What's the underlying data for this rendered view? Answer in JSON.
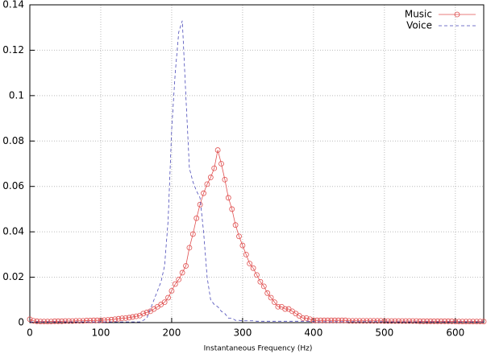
{
  "chart_data": {
    "type": "line",
    "x_label": "Instantaneous Frequency (Hz)",
    "x": [
      0,
      5,
      10,
      15,
      20,
      25,
      30,
      35,
      40,
      45,
      50,
      55,
      60,
      65,
      70,
      75,
      80,
      85,
      90,
      95,
      100,
      105,
      110,
      115,
      120,
      125,
      130,
      135,
      140,
      145,
      150,
      155,
      160,
      165,
      170,
      175,
      180,
      185,
      190,
      195,
      200,
      205,
      210,
      215,
      220,
      225,
      230,
      235,
      240,
      245,
      250,
      255,
      260,
      265,
      270,
      275,
      280,
      285,
      290,
      295,
      300,
      305,
      310,
      315,
      320,
      325,
      330,
      335,
      340,
      345,
      350,
      355,
      360,
      365,
      370,
      375,
      380,
      385,
      390,
      395,
      400,
      405,
      410,
      415,
      420,
      425,
      430,
      435,
      440,
      445,
      450,
      455,
      460,
      465,
      470,
      475,
      480,
      485,
      490,
      495,
      500,
      505,
      510,
      515,
      520,
      525,
      530,
      535,
      540,
      545,
      550,
      555,
      560,
      565,
      570,
      575,
      580,
      585,
      590,
      595,
      600,
      605,
      610,
      615,
      620,
      625,
      630,
      635,
      640
    ],
    "series": [
      {
        "name": "Music",
        "color": "#e05050",
        "marker": "circle",
        "dash": false,
        "values": [
          0.0015,
          0.0008,
          0.0006,
          0.0005,
          0.0005,
          0.0005,
          0.0005,
          0.0006,
          0.0006,
          0.0006,
          0.0007,
          0.0007,
          0.0007,
          0.0008,
          0.0008,
          0.0008,
          0.0009,
          0.0009,
          0.001,
          0.001,
          0.001,
          0.0011,
          0.0012,
          0.0013,
          0.0015,
          0.0017,
          0.0019,
          0.002,
          0.0022,
          0.0025,
          0.0028,
          0.0031,
          0.004,
          0.0045,
          0.005,
          0.006,
          0.007,
          0.008,
          0.009,
          0.011,
          0.014,
          0.017,
          0.019,
          0.022,
          0.025,
          0.033,
          0.039,
          0.046,
          0.052,
          0.057,
          0.061,
          0.064,
          0.068,
          0.076,
          0.07,
          0.063,
          0.055,
          0.05,
          0.043,
          0.038,
          0.034,
          0.03,
          0.026,
          0.024,
          0.021,
          0.018,
          0.016,
          0.013,
          0.011,
          0.009,
          0.007,
          0.007,
          0.006,
          0.006,
          0.005,
          0.004,
          0.003,
          0.002,
          0.002,
          0.0015,
          0.001,
          0.001,
          0.001,
          0.001,
          0.001,
          0.001,
          0.001,
          0.001,
          0.001,
          0.001,
          0.0008,
          0.0008,
          0.0008,
          0.0008,
          0.0008,
          0.0008,
          0.0008,
          0.0008,
          0.0008,
          0.0008,
          0.0007,
          0.0007,
          0.0007,
          0.0007,
          0.0007,
          0.0007,
          0.0007,
          0.0007,
          0.0007,
          0.0007,
          0.0006,
          0.0006,
          0.0006,
          0.0006,
          0.0006,
          0.0006,
          0.0006,
          0.0006,
          0.0006,
          0.0006,
          0.0005,
          0.0005,
          0.0005,
          0.0005,
          0.0005,
          0.0005,
          0.0005,
          0.0005,
          0.0005
        ]
      },
      {
        "name": "Voice",
        "color": "#4a4ab8",
        "marker": null,
        "dash": true,
        "values": [
          0.0003,
          0.0003,
          0.0003,
          0.0003,
          0.0003,
          0.0003,
          0.0003,
          0.0003,
          0.0003,
          0.0003,
          0.0003,
          0.0003,
          0.0003,
          0.0003,
          0.0003,
          0.0003,
          0.0003,
          0.0003,
          0.0003,
          0.0003,
          0.0003,
          0.0003,
          0.0003,
          0.0003,
          0.0003,
          0.0003,
          0.0003,
          0.0003,
          0.0003,
          0.0003,
          0.0003,
          0.0003,
          0.001,
          0.002,
          0.006,
          0.01,
          0.014,
          0.018,
          0.025,
          0.045,
          0.085,
          0.11,
          0.128,
          0.133,
          0.1,
          0.068,
          0.062,
          0.058,
          0.055,
          0.04,
          0.02,
          0.01,
          0.008,
          0.007,
          0.005,
          0.004,
          0.002,
          0.002,
          0.001,
          0.001,
          0.0008,
          0.0008,
          0.0008,
          0.0008,
          0.0006,
          0.0006,
          0.0006,
          0.0006,
          0.0006,
          0.0006,
          0.0006,
          0.0006,
          0.0006,
          0.0006,
          0.0006,
          0.0006,
          0.0006,
          0.0006,
          0.0006,
          0.0006,
          0.0004,
          0.0004,
          0.0004,
          0.0004,
          0.0004,
          0.0004,
          0.0004,
          0.0004,
          0.0004,
          0.0004,
          0.0004,
          0.0004,
          0.0004,
          0.0004,
          0.0004,
          0.0004,
          0.0004,
          0.0004,
          0.0004,
          0.0004,
          0.0003,
          0.0003,
          0.0003,
          0.0003,
          0.0003,
          0.0003,
          0.0003,
          0.0003,
          0.0003,
          0.0003,
          0.0003,
          0.0003,
          0.0003,
          0.0003,
          0.0003,
          0.0003,
          0.0003,
          0.0003,
          0.0003,
          0.0003,
          0.0003,
          0.0003,
          0.0003,
          0.0003,
          0.0003,
          0.0003,
          0.0003,
          0.0003,
          0.0003
        ]
      }
    ],
    "xlim": [
      0,
      640
    ],
    "ylim": [
      0,
      0.14
    ],
    "xticks": [
      0,
      100,
      200,
      300,
      400,
      500,
      600
    ],
    "yticks": [
      0,
      0.02,
      0.04,
      0.06,
      0.08,
      0.1,
      0.12,
      0.14
    ],
    "grid": true,
    "legend": "top-right"
  }
}
